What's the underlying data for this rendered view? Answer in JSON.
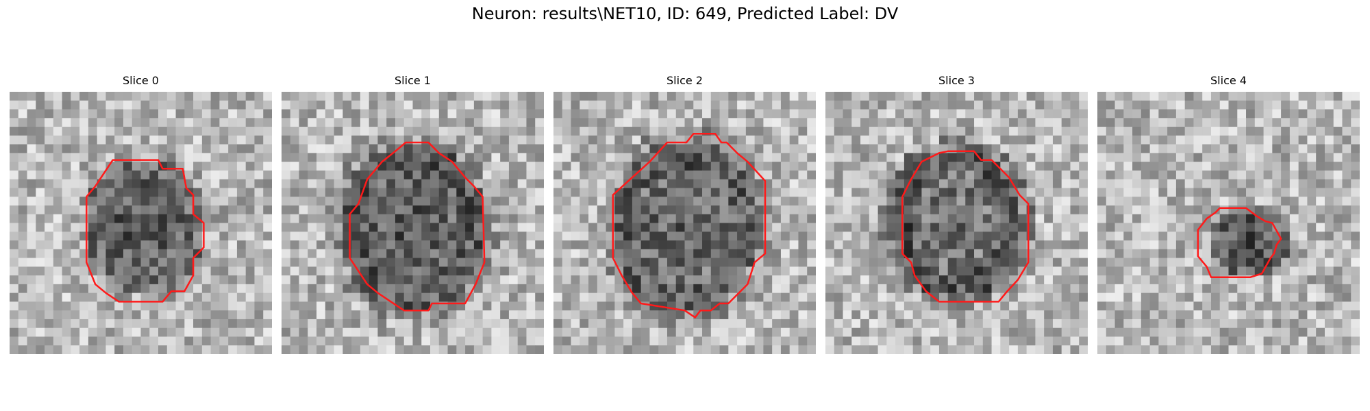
{
  "figure": {
    "title": "Neuron: results\\NET10, ID: 649, Predicted Label: DV"
  },
  "panels": [
    {
      "title": "Slice 0"
    },
    {
      "title": "Slice 1"
    },
    {
      "title": "Slice 2"
    },
    {
      "title": "Slice 3"
    },
    {
      "title": "Slice 4"
    }
  ],
  "colors": {
    "outline": "#ff1a1a",
    "background": "#ffffff",
    "colormap": "grayscale"
  }
}
